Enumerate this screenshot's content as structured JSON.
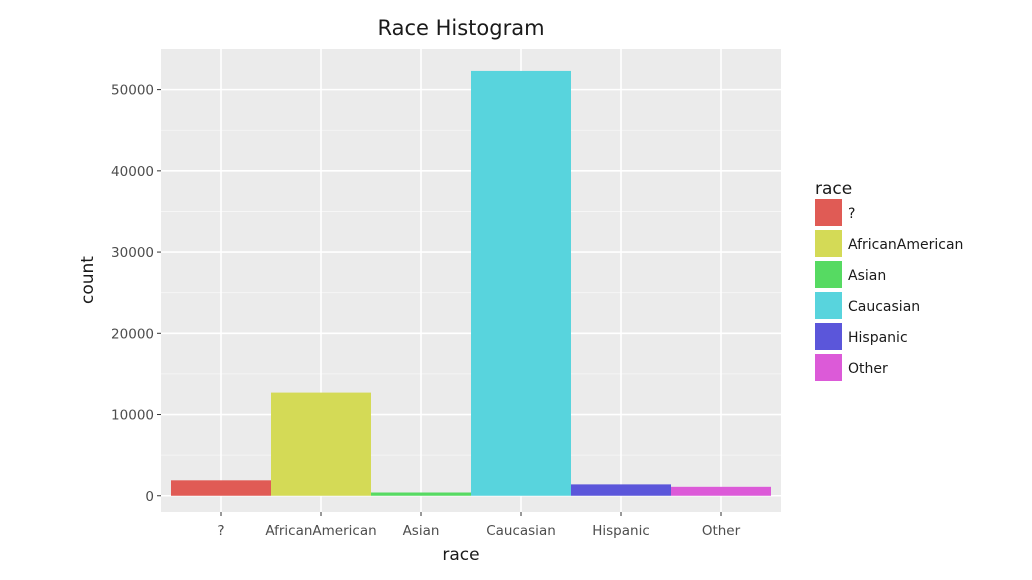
{
  "chart_data": {
    "type": "bar",
    "title": "Race Histogram",
    "xlabel": "race",
    "ylabel": "count",
    "categories": [
      "?",
      "AfricanAmerican",
      "Asian",
      "Caucasian",
      "Hispanic",
      "Other"
    ],
    "values": [
      1900,
      12700,
      400,
      52300,
      1400,
      1100
    ],
    "colors": [
      "#e05b55",
      "#d4da56",
      "#56da62",
      "#58d4dd",
      "#5b56da",
      "#dc5ad8"
    ],
    "ylim": [
      -2000,
      55000
    ],
    "yticks": [
      0,
      10000,
      20000,
      30000,
      40000,
      50000
    ],
    "ytick_labels": [
      "0",
      "10000",
      "20000",
      "30000",
      "40000",
      "50000"
    ],
    "grid": true,
    "legend": {
      "title": "race",
      "placement": "right",
      "entries": [
        "?",
        "AfricanAmerican",
        "Asian",
        "Caucasian",
        "Hispanic",
        "Other"
      ]
    }
  },
  "style": {
    "panel_bg": "#ebebeb",
    "grid_major": "#ffffff"
  }
}
